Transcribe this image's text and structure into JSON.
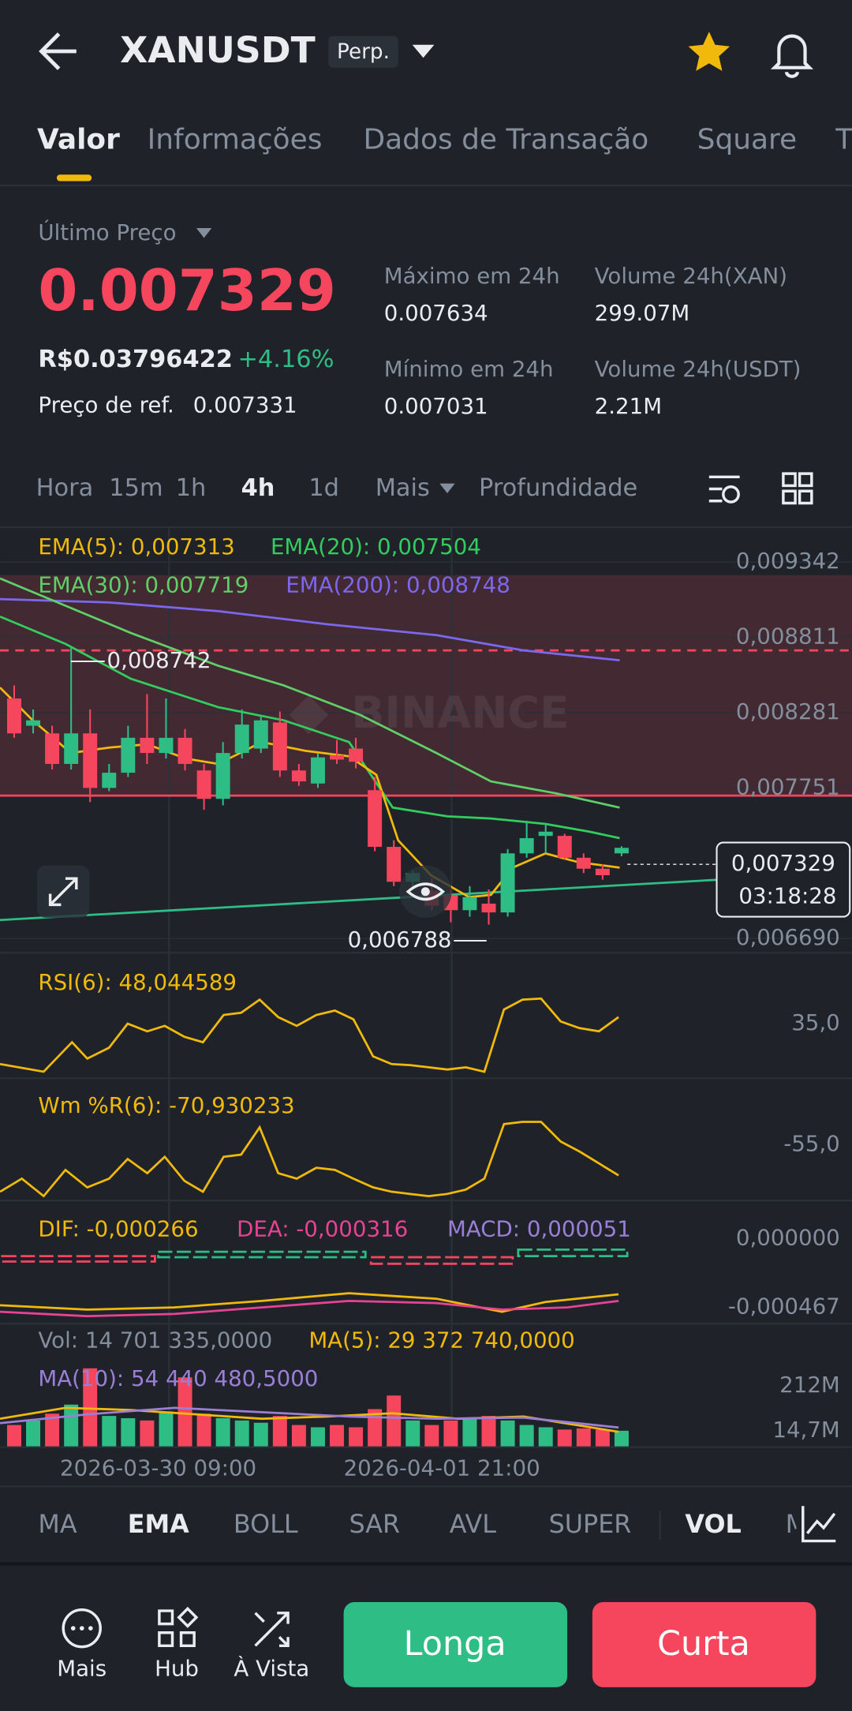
{
  "header": {
    "symbol": "XANUSDT",
    "badge": "Perp."
  },
  "tabs": [
    "Valor",
    "Informações",
    "Dados de Transação",
    "Square",
    "T"
  ],
  "price": {
    "label": "Último Preço",
    "last": "0.007329",
    "fiat": "R$0.03796422",
    "change": "+4.16%",
    "ref_label": "Preço de ref.",
    "ref": "0.007331"
  },
  "stats": [
    {
      "label": "Máximo em 24h",
      "value": "0.007634"
    },
    {
      "label": "Volume 24h(XAN)",
      "value": "299.07M"
    },
    {
      "label": "Mínimo em 24h",
      "value": "0.007031"
    },
    {
      "label": "Volume 24h(USDT)",
      "value": "2.21M"
    }
  ],
  "intervals": [
    "Hora",
    "15m",
    "1h",
    "4h",
    "1d",
    "Mais",
    "Profundidade"
  ],
  "chart": {
    "indicators": [
      "EMA(5): 0,007313",
      "EMA(20): 0,007504",
      "EMA(30): 0,007719",
      "EMA(200): 0,008748"
    ],
    "ticks": [
      {
        "value": 0.009342,
        "label": "0,009342"
      },
      {
        "value": 0.008811,
        "label": "0,008811"
      },
      {
        "value": 0.008281,
        "label": "0,008281"
      },
      {
        "value": 0.007751,
        "label": "0,007751"
      },
      {
        "value": 0.00669,
        "label": "0,006690"
      }
    ],
    "up_color": "#2ebd85",
    "down_color": "#f6465d",
    "candles": [
      [
        0.008381,
        0.008473,
        0.008104,
        0.008135
      ],
      [
        0.008189,
        0.008304,
        0.008135,
        0.008227
      ],
      [
        0.008135,
        0.008189,
        0.007881,
        0.00792
      ],
      [
        0.00792,
        0.008742,
        0.007881,
        0.008135
      ],
      [
        0.008135,
        0.008304,
        0.007651,
        0.007751
      ],
      [
        0.007751,
        0.00792,
        0.007728,
        0.007858
      ],
      [
        0.007858,
        0.008189,
        0.007828,
        0.008104
      ],
      [
        0.008104,
        0.008412,
        0.00792,
        0.007997
      ],
      [
        0.007997,
        0.008381,
        0.007958,
        0.008104
      ],
      [
        0.008104,
        0.008166,
        0.007874,
        0.00792
      ],
      [
        0.007874,
        0.00792,
        0.007597,
        0.007674
      ],
      [
        0.007674,
        0.008074,
        0.007628,
        0.007997
      ],
      [
        0.007997,
        0.008304,
        0.007958,
        0.008197
      ],
      [
        0.008028,
        0.008266,
        0.007997,
        0.008227
      ],
      [
        0.008212,
        0.008289,
        0.007828,
        0.007874
      ],
      [
        0.007874,
        0.00792,
        0.007766,
        0.007797
      ],
      [
        0.007782,
        0.007997,
        0.007751,
        0.007966
      ],
      [
        0.007981,
        0.008089,
        0.00792,
        0.007951
      ],
      [
        0.008028,
        0.008104,
        0.007889,
        0.007935
      ],
      [
        0.007735,
        0.007828,
        0.007305,
        0.007336
      ],
      [
        0.007336,
        0.007382,
        0.007059,
        0.00709
      ],
      [
        0.00709,
        0.007167,
        0.007036,
        0.007151
      ],
      [
        0.007028,
        0.007113,
        0.00689,
        0.006921
      ],
      [
        0.006997,
        0.007036,
        0.006805,
        0.00689
      ],
      [
        0.00689,
        0.007059,
        0.006844,
        0.006982
      ],
      [
        0.006936,
        0.007036,
        0.006788,
        0.006874
      ],
      [
        0.006874,
        0.00732,
        0.006844,
        0.00729
      ],
      [
        0.00729,
        0.00752,
        0.007259,
        0.007397
      ],
      [
        0.007413,
        0.007505,
        0.00729,
        0.007443
      ],
      [
        0.007413,
        0.007428,
        0.007243,
        0.007259
      ],
      [
        0.007259,
        0.00729,
        0.007151,
        0.007182
      ],
      [
        0.007182,
        0.007213,
        0.007105,
        0.007136
      ],
      [
        0.00729,
        0.00734,
        0.00727,
        0.007329
      ]
    ],
    "extreme_labels": [
      "0,008742",
      "0,006788"
    ],
    "last_label": "0,007329",
    "countdown": "03:18:28",
    "watermark": "BINANCE"
  },
  "rsi": {
    "label": "RSI(6): 48,044589",
    "tick": "35,0"
  },
  "wr": {
    "label": "Wm %R(6): -70,930233",
    "tick": "-55,0"
  },
  "macd": {
    "labels": [
      "DIF: -0,000266",
      "DEA: -0,000316",
      "MACD: 0,000051"
    ],
    "ticks": [
      "0,000000",
      "-0,000467"
    ]
  },
  "volume": {
    "labels": [
      "Vol: 14 701 335,0000",
      "MA(5): 29 372 740,0000",
      "MA(10): 54 440 480,5000"
    ],
    "ticks": [
      {
        "value": 212,
        "label": "212M"
      },
      {
        "value": 14.7,
        "label": "14,7M"
      }
    ],
    "values": [
      40,
      60,
      90,
      130,
      290,
      80,
      70,
      60,
      100,
      250,
      90,
      70,
      60,
      50,
      80,
      40,
      30,
      40,
      30,
      110,
      170,
      60,
      40,
      60,
      70,
      80,
      60,
      40,
      30,
      20,
      25,
      20,
      14.7
    ]
  },
  "dates": [
    "2026-03-30 09:00",
    "2026-04-01 21:00"
  ],
  "indicator_tabs": [
    "MA",
    "EMA",
    "BOLL",
    "SAR",
    "AVL",
    "SUPER",
    "VOL",
    "M"
  ],
  "actions": [
    "Mais",
    "Hub",
    "À Vista"
  ],
  "buttons": [
    "Longa",
    "Curta"
  ]
}
